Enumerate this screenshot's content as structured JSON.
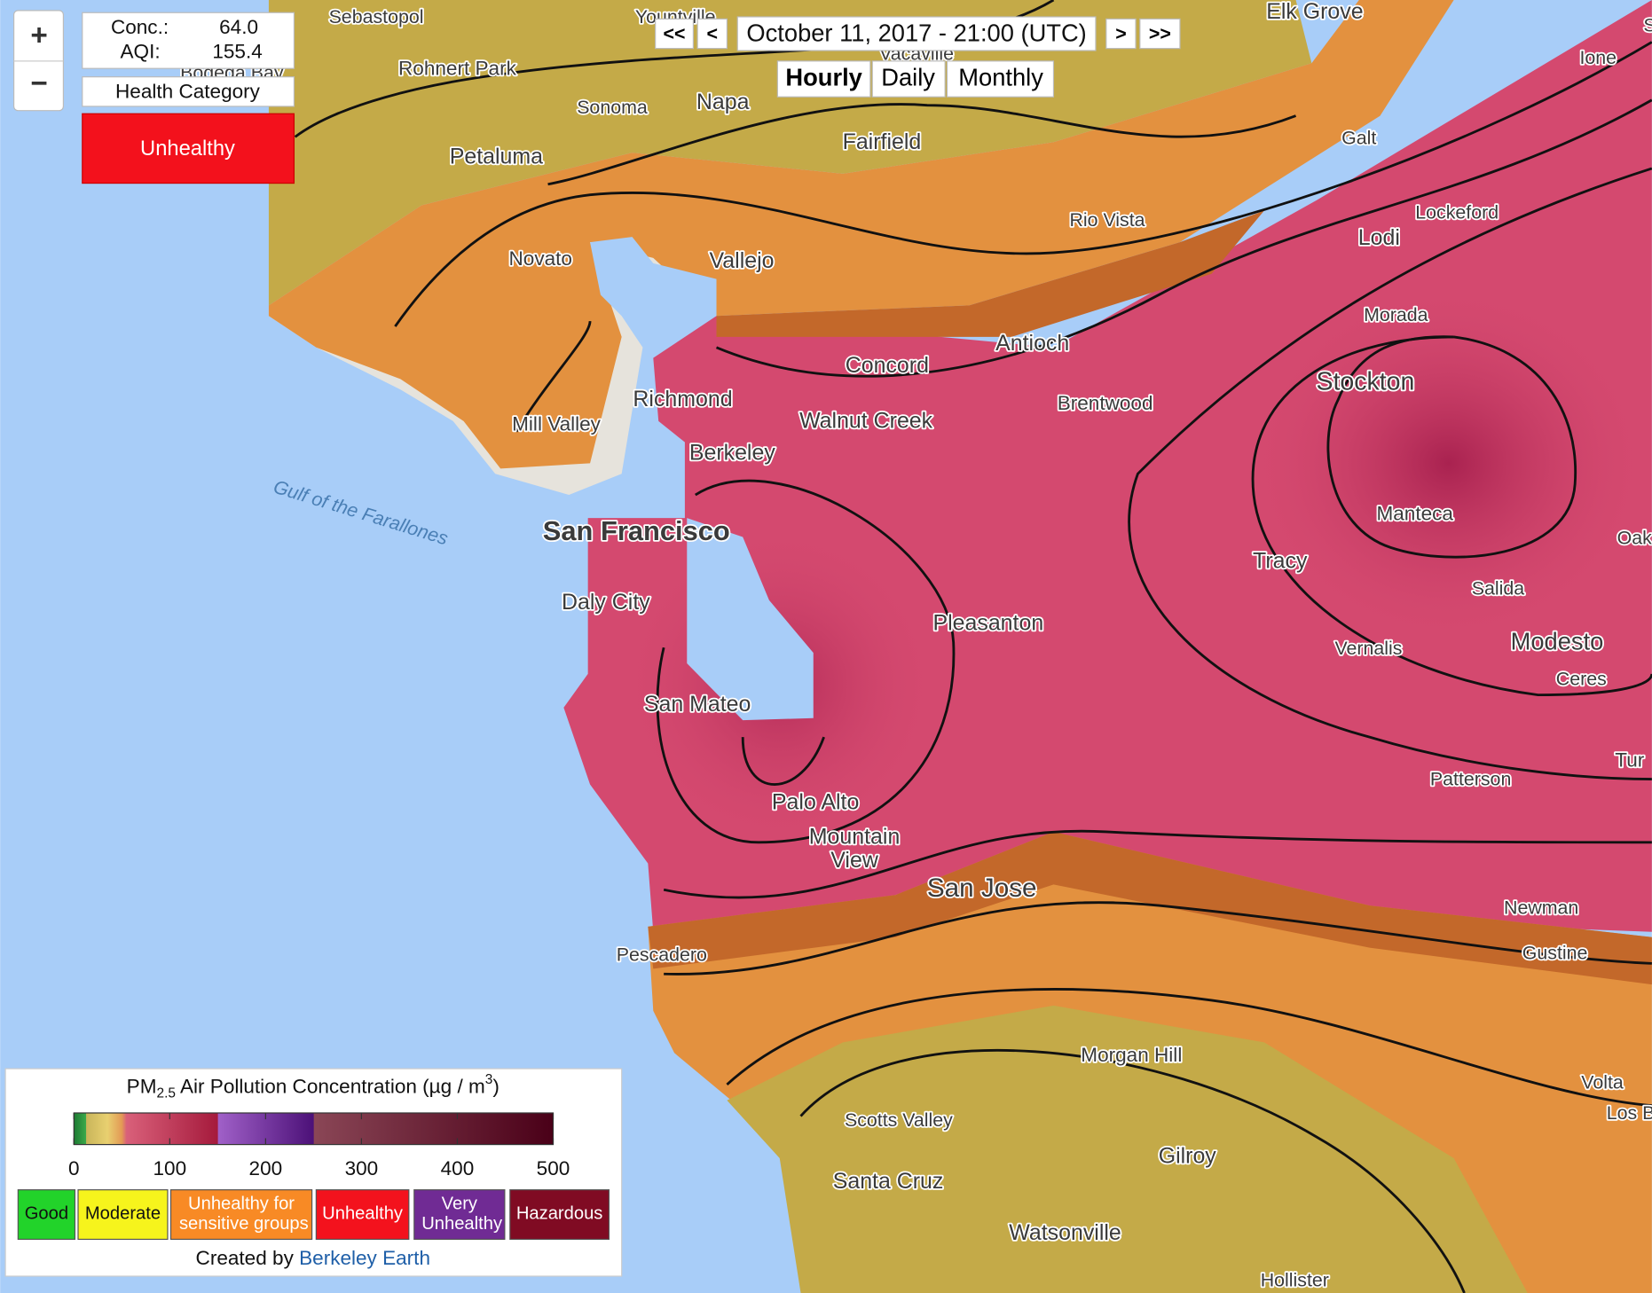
{
  "zoom": {
    "in": "+",
    "out": "−"
  },
  "readout": {
    "conc_label": "Conc.:",
    "conc": "64.0",
    "aqi_label": "AQI:",
    "aqi": "155.4",
    "category_header": "Health Category",
    "category": "Unhealthy"
  },
  "time_nav": {
    "first": "<<",
    "prev": "<",
    "date": "October 11, 2017 - 21:00 (UTC)",
    "next": ">",
    "last": ">>",
    "modes": [
      "Hourly",
      "Daily",
      "Monthly"
    ]
  },
  "places": [
    "Sebastopol",
    "Yountville",
    "Vacaville",
    "Bodega Bay",
    "Elk Grove",
    "Ione",
    "Su",
    "Rohnert Park",
    "Sonoma",
    "Napa",
    "Fairfield",
    "Petaluma",
    "Galt",
    "Rio Vista",
    "Lockeford",
    "Lodi",
    "Novato",
    "Vallejo",
    "Morada",
    "Antioch",
    "Concord",
    "Stockton",
    "Richmond",
    "Brentwood",
    "Walnut Creek",
    "Mill Valley",
    "Berkeley",
    "Manteca",
    "San Francisco",
    "Oak",
    "Tracy",
    "Daly City",
    "Salida",
    "Pleasanton",
    "Modesto",
    "Vernalis",
    "Ceres",
    "San Mateo",
    "Tur",
    "Patterson",
    "Palo Alto",
    "Mountain",
    "View",
    "San Jose",
    "Newman",
    "Pescadero",
    "Gustine",
    "Morgan Hill",
    "Volta",
    "Los B",
    "Scotts Valley",
    "Gilroy",
    "Santa Cruz",
    "Watsonville",
    "Hollister"
  ],
  "water_label": "Gulf of the Farallones",
  "legend": {
    "title_pm": "PM",
    "title_sub": "2.5",
    "title_main": " Air Pollution Concentration (µg / m",
    "title_sup": "3",
    "title_end": ")",
    "lim": [
      0,
      500
    ],
    "ticks": [
      0,
      100,
      200,
      300,
      400,
      500
    ],
    "categories": [
      {
        "name": "Good",
        "color": "#22d32a"
      },
      {
        "name": "Moderate",
        "color": "#f6f41c"
      },
      {
        "name": "Unhealthy for sensitive groups",
        "color": "#f88a25"
      },
      {
        "name": "Unhealthy",
        "color": "#f3121d"
      },
      {
        "name": "Very Unhealthy",
        "color": "#702b94"
      },
      {
        "name": "Hazardous",
        "color": "#800b23"
      }
    ],
    "credit": "Created by",
    "credit_link": "Berkeley Earth"
  }
}
